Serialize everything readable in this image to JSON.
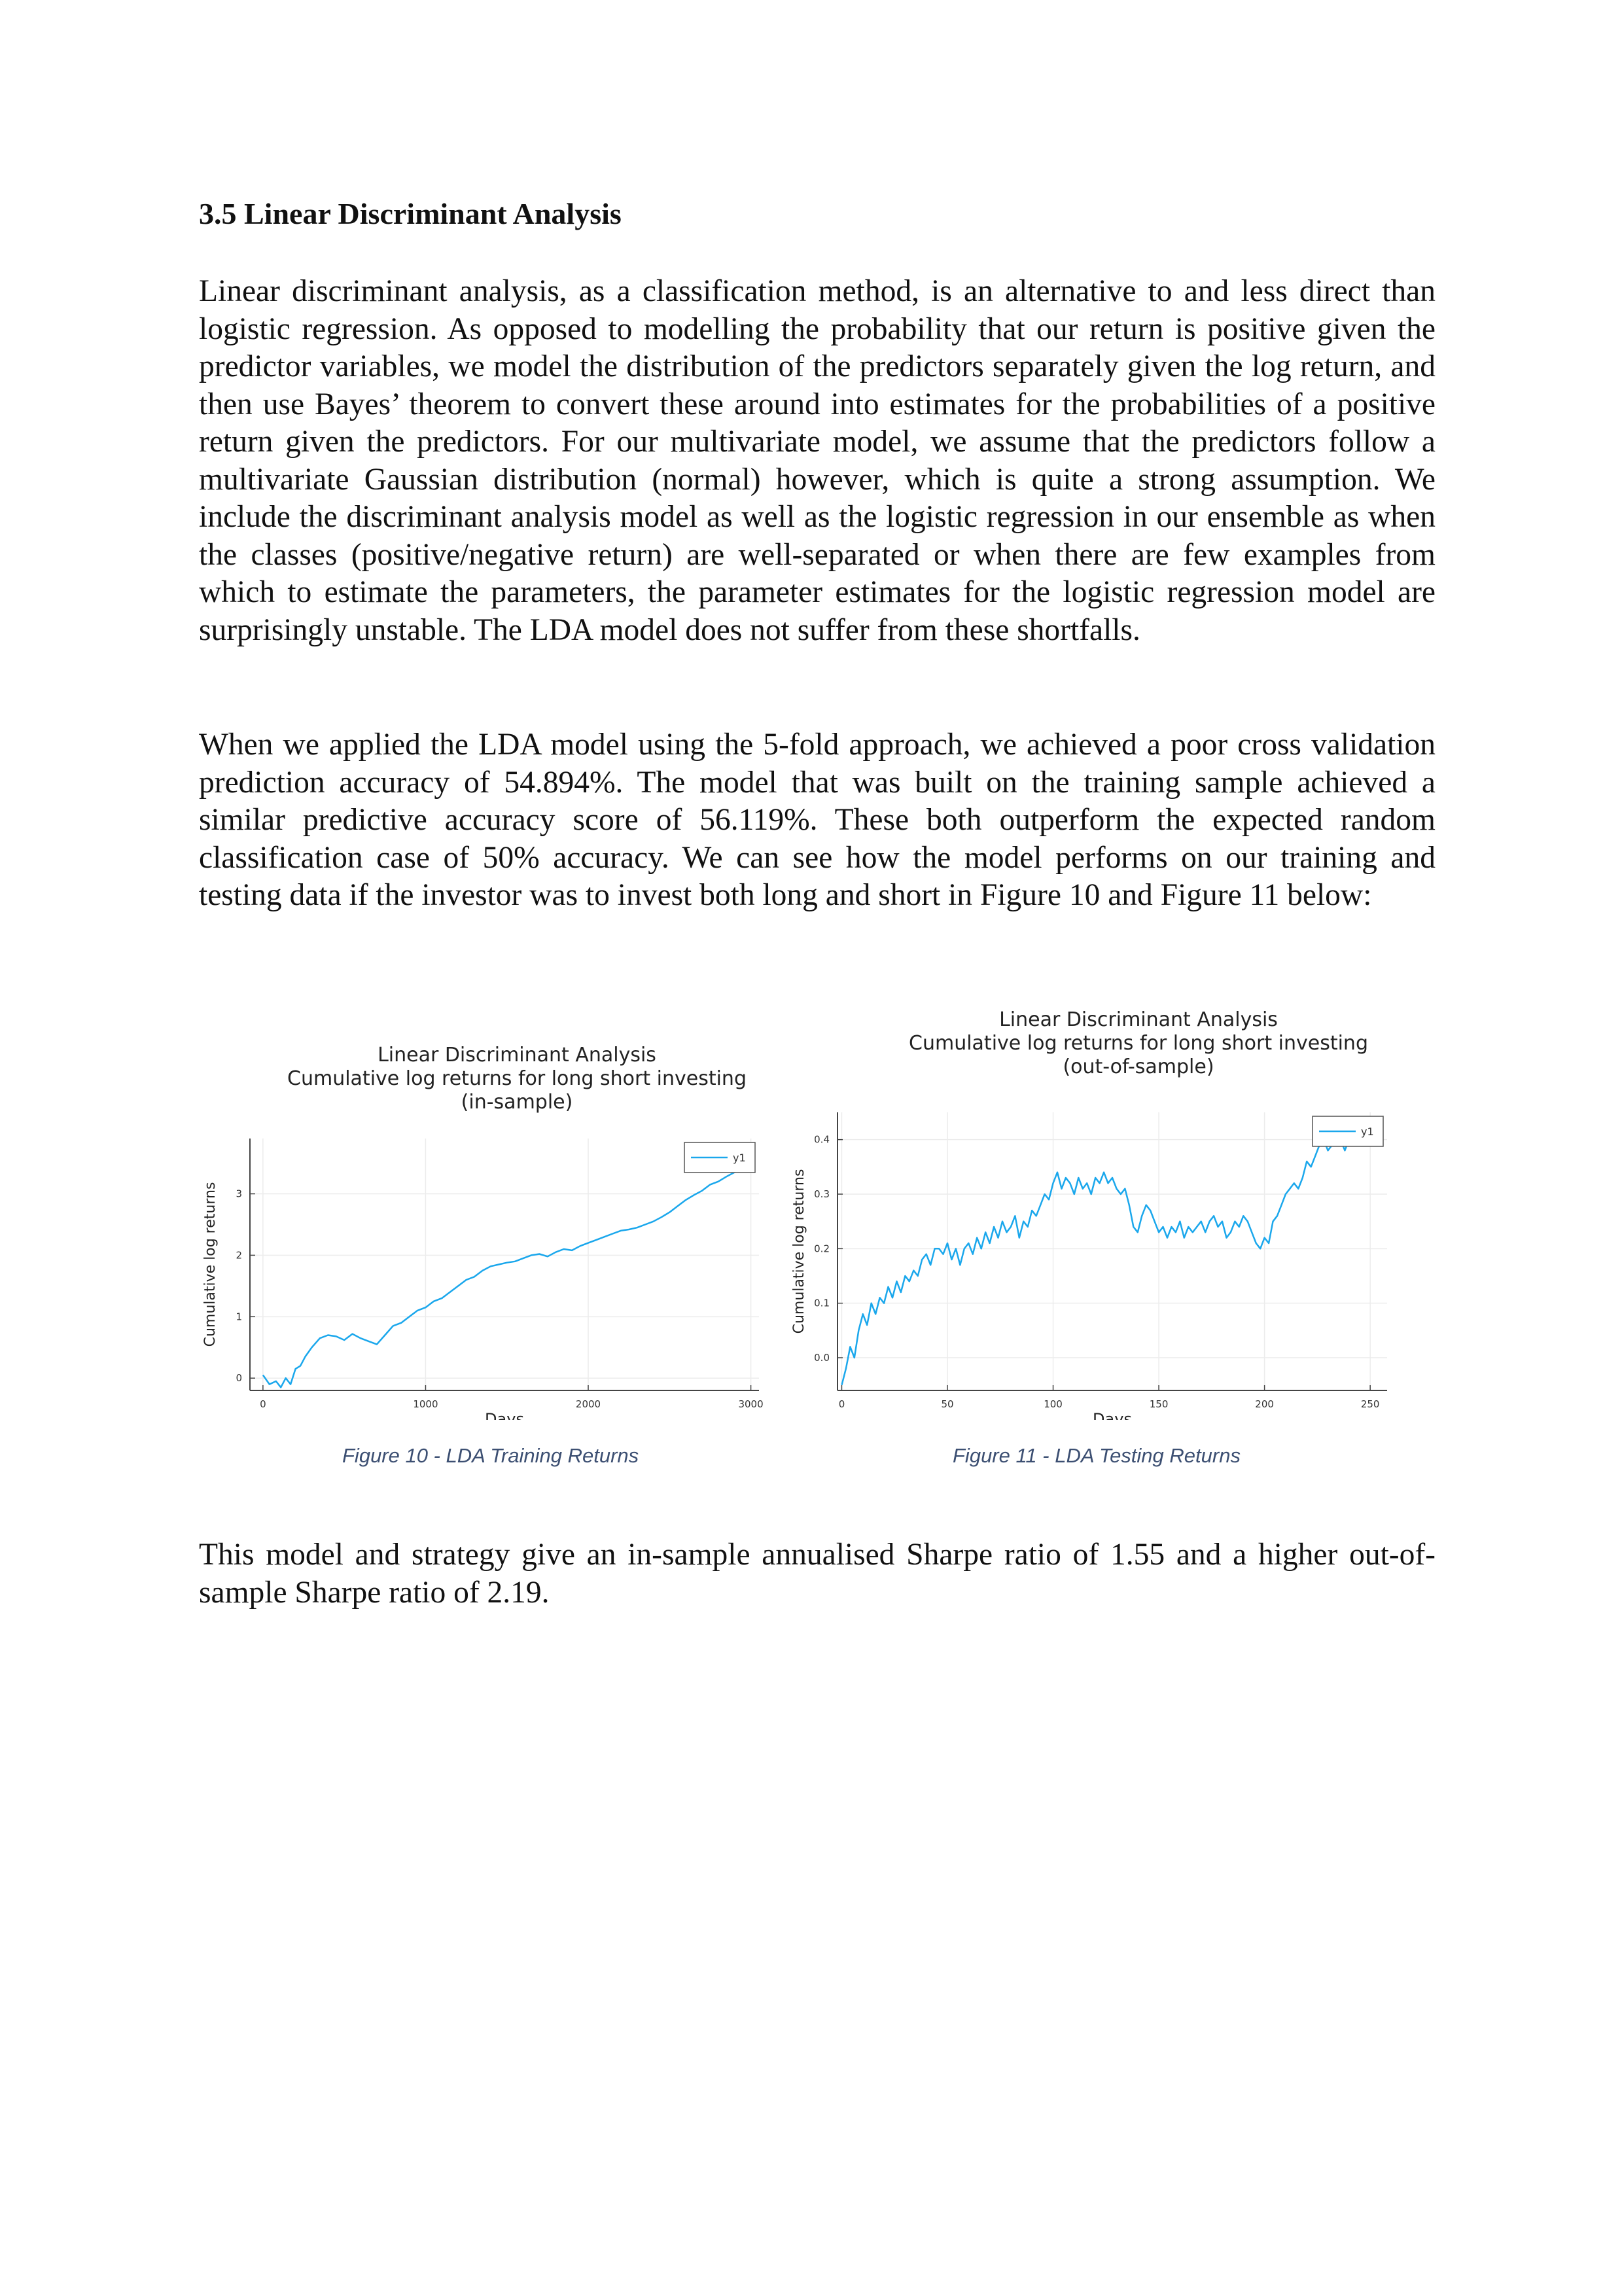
{
  "section_heading": "3.5 Linear Discriminant Analysis",
  "paragraphs": [
    "Linear discriminant analysis, as a classification method, is an alternative to and less direct than logistic regression. As opposed to modelling the probability that our return is positive given the predictor variables, we model the distribution of the predictors separately given the log return, and then use Bayes’ theorem to convert these around into estimates for the probabilities of a positive return given the predictors. For our multivariate model, we assume that the predictors follow a multivariate Gaussian distribution (normal) however, which is quite a strong assumption. We include the discriminant analysis model as well as the logistic regression in our ensemble as when the classes (positive/negative return) are well-separated or when there are few examples from which to estimate the parameters, the parameter estimates for the logistic regression model are surprisingly unstable. The LDA model does not suffer from these shortfalls.",
    "When we applied the LDA model using the 5-fold approach, we achieved a poor cross validation prediction accuracy of 54.894%. The model that was built on the training sample achieved a similar predictive accuracy score of 56.119%. These both outperform the expected random classification case of 50% accuracy. We can see how the model performs on our training and testing data if the investor was to invest both long and short in Figure 10 and Figure 11 below:",
    "This model and strategy give an in-sample annualised Sharpe ratio of 1.55 and a higher out-of-sample Sharpe ratio of 2.19."
  ],
  "figures": [
    {
      "caption": "Figure 10 - LDA Training Returns"
    },
    {
      "caption": "Figure 11 - LDA Testing Returns"
    }
  ],
  "chart_data": [
    {
      "type": "line",
      "title": "Linear Discriminant Analysis",
      "subtitle": "Cumulative log returns for long short investing",
      "subtitle2": "(in-sample)",
      "xlabel": "Days",
      "ylabel": "Cumulative log returns",
      "xlim": [
        -80,
        3050
      ],
      "ylim": [
        -0.2,
        3.9
      ],
      "xticks": [
        0,
        1000,
        2000,
        3000
      ],
      "yticks": [
        0,
        1,
        2,
        3
      ],
      "grid": true,
      "legend_position": "top-right",
      "series_color": "#1aa7ec",
      "series": [
        {
          "name": "y1",
          "x": [
            0,
            40,
            80,
            110,
            140,
            170,
            200,
            230,
            260,
            300,
            350,
            400,
            450,
            500,
            550,
            600,
            650,
            700,
            750,
            800,
            850,
            900,
            950,
            1000,
            1050,
            1100,
            1150,
            1200,
            1250,
            1300,
            1350,
            1400,
            1450,
            1500,
            1550,
            1600,
            1650,
            1700,
            1750,
            1800,
            1850,
            1900,
            1950,
            2000,
            2050,
            2100,
            2150,
            2200,
            2250,
            2300,
            2350,
            2400,
            2450,
            2500,
            2550,
            2600,
            2650,
            2700,
            2750,
            2800,
            2850,
            2900,
            2950,
            3000,
            3020
          ],
          "y": [
            0.05,
            -0.1,
            -0.05,
            -0.15,
            0.0,
            -0.1,
            0.15,
            0.2,
            0.35,
            0.5,
            0.65,
            0.7,
            0.68,
            0.62,
            0.72,
            0.65,
            0.6,
            0.55,
            0.7,
            0.85,
            0.9,
            1.0,
            1.1,
            1.15,
            1.25,
            1.3,
            1.4,
            1.5,
            1.6,
            1.65,
            1.75,
            1.82,
            1.85,
            1.88,
            1.9,
            1.95,
            2.0,
            2.02,
            1.98,
            2.05,
            2.1,
            2.08,
            2.15,
            2.2,
            2.25,
            2.3,
            2.35,
            2.4,
            2.42,
            2.45,
            2.5,
            2.55,
            2.62,
            2.7,
            2.8,
            2.9,
            2.98,
            3.05,
            3.15,
            3.2,
            3.28,
            3.35,
            3.38,
            3.5,
            3.62
          ]
        }
      ]
    },
    {
      "type": "line",
      "title": "Linear Discriminant Analysis",
      "subtitle": "Cumulative log returns for long short investing",
      "subtitle2": "(out-of-sample)",
      "xlabel": "Days",
      "ylabel": "Cumulative log returns",
      "xlim": [
        -2,
        258
      ],
      "ylim": [
        -0.06,
        0.45
      ],
      "xticks": [
        0,
        50,
        100,
        150,
        200,
        250
      ],
      "yticks": [
        0.0,
        0.1,
        0.2,
        0.3,
        0.4
      ],
      "tick_labels": [
        "0.0",
        "0.1",
        "0.2",
        "0.3",
        "0.4"
      ],
      "grid": true,
      "legend_position": "top-right",
      "series_color": "#1aa7ec",
      "series": [
        {
          "name": "y1",
          "x": [
            0,
            2,
            4,
            6,
            8,
            10,
            12,
            14,
            16,
            18,
            20,
            22,
            24,
            26,
            28,
            30,
            32,
            34,
            36,
            38,
            40,
            42,
            44,
            46,
            48,
            50,
            52,
            54,
            56,
            58,
            60,
            62,
            64,
            66,
            68,
            70,
            72,
            74,
            76,
            78,
            80,
            82,
            84,
            86,
            88,
            90,
            92,
            94,
            96,
            98,
            100,
            102,
            104,
            106,
            108,
            110,
            112,
            114,
            116,
            118,
            120,
            122,
            124,
            126,
            128,
            130,
            132,
            134,
            136,
            138,
            140,
            142,
            144,
            146,
            148,
            150,
            152,
            154,
            156,
            158,
            160,
            162,
            164,
            166,
            168,
            170,
            172,
            174,
            176,
            178,
            180,
            182,
            184,
            186,
            188,
            190,
            192,
            194,
            196,
            198,
            200,
            202,
            204,
            206,
            208,
            210,
            212,
            214,
            216,
            218,
            220,
            222,
            224,
            226,
            228,
            230,
            232,
            234,
            236,
            238,
            240,
            242,
            244
          ],
          "y": [
            -0.05,
            -0.02,
            0.02,
            0.0,
            0.05,
            0.08,
            0.06,
            0.1,
            0.08,
            0.11,
            0.1,
            0.13,
            0.11,
            0.14,
            0.12,
            0.15,
            0.14,
            0.16,
            0.15,
            0.18,
            0.19,
            0.17,
            0.2,
            0.2,
            0.19,
            0.21,
            0.18,
            0.2,
            0.17,
            0.2,
            0.21,
            0.19,
            0.22,
            0.2,
            0.23,
            0.21,
            0.24,
            0.22,
            0.25,
            0.23,
            0.24,
            0.26,
            0.22,
            0.25,
            0.24,
            0.27,
            0.26,
            0.28,
            0.3,
            0.29,
            0.32,
            0.34,
            0.31,
            0.33,
            0.32,
            0.3,
            0.33,
            0.31,
            0.32,
            0.3,
            0.33,
            0.32,
            0.34,
            0.32,
            0.33,
            0.31,
            0.3,
            0.31,
            0.28,
            0.24,
            0.23,
            0.26,
            0.28,
            0.27,
            0.25,
            0.23,
            0.24,
            0.22,
            0.24,
            0.23,
            0.25,
            0.22,
            0.24,
            0.23,
            0.24,
            0.25,
            0.23,
            0.25,
            0.26,
            0.24,
            0.25,
            0.22,
            0.23,
            0.25,
            0.24,
            0.26,
            0.25,
            0.23,
            0.21,
            0.2,
            0.22,
            0.21,
            0.25,
            0.26,
            0.28,
            0.3,
            0.31,
            0.32,
            0.31,
            0.33,
            0.36,
            0.35,
            0.37,
            0.39,
            0.4,
            0.38,
            0.39,
            0.41,
            0.4,
            0.38,
            0.4,
            0.39,
            0.4
          ]
        }
      ]
    }
  ]
}
